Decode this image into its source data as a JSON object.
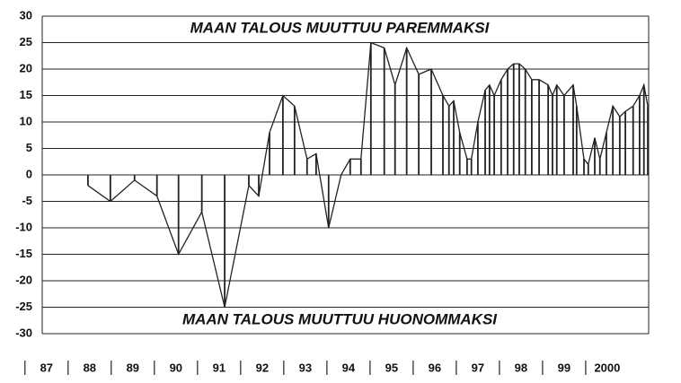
{
  "chart_data": {
    "type": "line",
    "annotations": [
      "MAAN TALOUS MUUTTUU PAREMMAKSI",
      "MAAN TALOUS MUUTTUU HUONOMMAKSI"
    ],
    "x": [
      1988.46,
      1988.98,
      1989.54,
      1990.06,
      1990.56,
      1991.1,
      1991.63,
      1992.19,
      1992.42,
      1992.67,
      1992.98,
      1993.25,
      1993.54,
      1993.75,
      1994.04,
      1994.33,
      1994.54,
      1994.79,
      1995.02,
      1995.33,
      1995.58,
      1995.85,
      1996.13,
      1996.42,
      1996.69,
      1996.83,
      1996.94,
      1997.08,
      1997.25,
      1997.35,
      1997.5,
      1997.67,
      1997.77,
      1997.88,
      1998.04,
      1998.19,
      1998.33,
      1998.46,
      1998.6,
      1998.75,
      1998.92,
      1999.13,
      1999.23,
      1999.33,
      1999.5,
      1999.71,
      1999.79,
      1999.96,
      2000.06,
      2000.21,
      2000.33,
      2000.48,
      2000.63,
      2000.79,
      2000.92,
      2001.1,
      2001.25,
      2001.35,
      2001.44
    ],
    "series": [
      {
        "color": "#222222",
        "values": [
          -2,
          -5,
          -1,
          -4,
          -15,
          -7,
          -25,
          -2,
          -4,
          8,
          15,
          13,
          3,
          4,
          -10,
          0,
          3,
          3,
          25,
          24,
          17,
          24,
          19,
          20,
          15,
          13,
          14,
          8,
          3,
          3,
          10,
          16,
          17,
          15,
          18,
          20,
          21,
          21,
          20,
          18,
          18,
          17,
          15,
          17,
          15,
          17,
          13,
          3,
          2,
          7,
          3,
          8,
          13,
          11,
          12,
          13,
          15,
          17,
          13
        ]
      }
    ],
    "xlim": [
      1987.4,
      2001.46
    ],
    "xticks": [
      {
        "value": 1987,
        "label": "87"
      },
      {
        "value": 1988,
        "label": "88"
      },
      {
        "value": 1989,
        "label": "89"
      },
      {
        "value": 1990,
        "label": "90"
      },
      {
        "value": 1991,
        "label": "91"
      },
      {
        "value": 1992,
        "label": "92"
      },
      {
        "value": 1993,
        "label": "93"
      },
      {
        "value": 1994,
        "label": "94"
      },
      {
        "value": 1995,
        "label": "95"
      },
      {
        "value": 1996,
        "label": "96"
      },
      {
        "value": 1997,
        "label": "97"
      },
      {
        "value": 1998,
        "label": "98"
      },
      {
        "value": 1999,
        "label": "99"
      },
      2000
    ],
    "ylim": [
      -30,
      30
    ],
    "yticks": [
      -30,
      -25,
      -20,
      -15,
      -10,
      -5,
      0,
      5,
      10,
      15,
      20,
      25,
      30
    ],
    "grid": true
  }
}
